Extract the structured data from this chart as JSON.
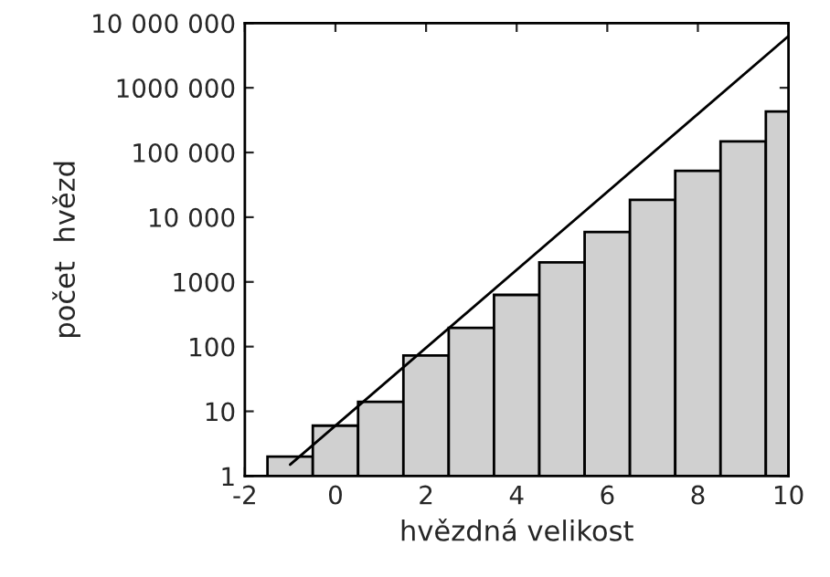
{
  "chart_data": {
    "type": "histogram",
    "xlabel": "hvězdná velikost",
    "ylabel": "počet  hvězd",
    "bins": [
      -1.5,
      -0.5,
      0.5,
      1.5,
      2.5,
      3.5,
      4.5,
      5.5,
      6.5,
      7.5,
      8.5,
      9.5,
      10
    ],
    "values": [
      2,
      6,
      14,
      73,
      195,
      630,
      2000,
      5900,
      18600,
      52000,
      148000,
      430000
    ],
    "color": "#d0d0d0",
    "series": [
      {
        "type": "line",
        "color": "#000000",
        "x": [
          -1,
          10
        ],
        "values": [
          1.5,
          6300000
        ]
      }
    ],
    "log": "y",
    "grid": false,
    "legend": false,
    "xlim": [
      -2,
      10
    ],
    "xticks": [
      -2,
      0,
      2,
      4,
      6,
      8,
      10
    ],
    "ylim": [
      1,
      10000000
    ],
    "yticks": [
      1,
      10,
      100,
      1000,
      {
        "value": 10000,
        "label": "10 000"
      },
      {
        "value": 100000,
        "label": "100 000"
      },
      {
        "value": 1000000,
        "label": "1000 000"
      },
      {
        "value": 10000000,
        "label": "10 000 000"
      }
    ]
  }
}
